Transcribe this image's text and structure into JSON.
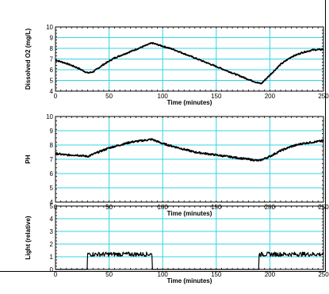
{
  "chart_data": [
    {
      "type": "line",
      "xlabel": "Time   (minutes)",
      "ylabel": "Dissolved O2 (mg/L)",
      "xlim": [
        0,
        250
      ],
      "ylim": [
        4,
        10
      ],
      "xticks": [
        0,
        50,
        100,
        150,
        200,
        250
      ],
      "yticks": [
        4,
        5,
        6,
        7,
        8,
        9,
        10
      ],
      "grid": true,
      "grid_color": "#33d6e0",
      "line_color": "#000000",
      "series": [
        {
          "x": [
            0,
            10,
            20,
            30,
            35,
            45,
            55,
            65,
            75,
            85,
            90,
            100,
            110,
            120,
            130,
            140,
            150,
            160,
            170,
            180,
            188,
            192,
            200,
            210,
            220,
            230,
            240,
            250
          ],
          "values": [
            6.9,
            6.6,
            6.2,
            5.7,
            5.8,
            6.5,
            7.1,
            7.5,
            7.9,
            8.3,
            8.5,
            8.2,
            7.9,
            7.5,
            7.1,
            6.7,
            6.3,
            5.9,
            5.5,
            5.1,
            4.8,
            4.7,
            5.5,
            6.5,
            7.2,
            7.6,
            7.85,
            7.9
          ]
        }
      ]
    },
    {
      "type": "line",
      "xlabel": "Time   (minutes)",
      "ylabel": "PH",
      "xlim": [
        0,
        250
      ],
      "ylim": [
        4,
        10
      ],
      "xticks": [
        0,
        50,
        100,
        150,
        200,
        250
      ],
      "yticks": [
        4,
        5,
        6,
        7,
        8,
        9,
        10
      ],
      "grid": true,
      "grid_color": "#33d6e0",
      "line_color": "#000000",
      "series": [
        {
          "x": [
            0,
            10,
            20,
            30,
            40,
            50,
            60,
            70,
            80,
            90,
            100,
            110,
            120,
            130,
            140,
            150,
            160,
            170,
            180,
            190,
            200,
            210,
            220,
            230,
            240,
            250
          ],
          "values": [
            7.4,
            7.3,
            7.3,
            7.2,
            7.5,
            7.8,
            8.0,
            8.2,
            8.3,
            8.4,
            8.1,
            7.9,
            7.7,
            7.5,
            7.4,
            7.3,
            7.2,
            7.1,
            7.0,
            6.9,
            7.2,
            7.6,
            7.9,
            8.1,
            8.2,
            8.3
          ]
        }
      ]
    },
    {
      "type": "line",
      "xlabel": "Time   (minutes)",
      "ylabel": "Light (relative)",
      "xlim": [
        0,
        250
      ],
      "ylim": [
        0,
        5
      ],
      "xticks": [
        0,
        50,
        100,
        150,
        200,
        250
      ],
      "yticks": [
        0,
        1,
        2,
        3,
        4,
        5
      ],
      "grid": true,
      "grid_color": "#33d6e0",
      "line_color": "#000000",
      "series": [
        {
          "x": [
            0,
            30,
            30,
            90,
            90,
            190,
            190,
            250,
            250
          ],
          "values": [
            0,
            0,
            1.2,
            1.2,
            0,
            0,
            1.2,
            1.2,
            0
          ]
        }
      ]
    }
  ]
}
